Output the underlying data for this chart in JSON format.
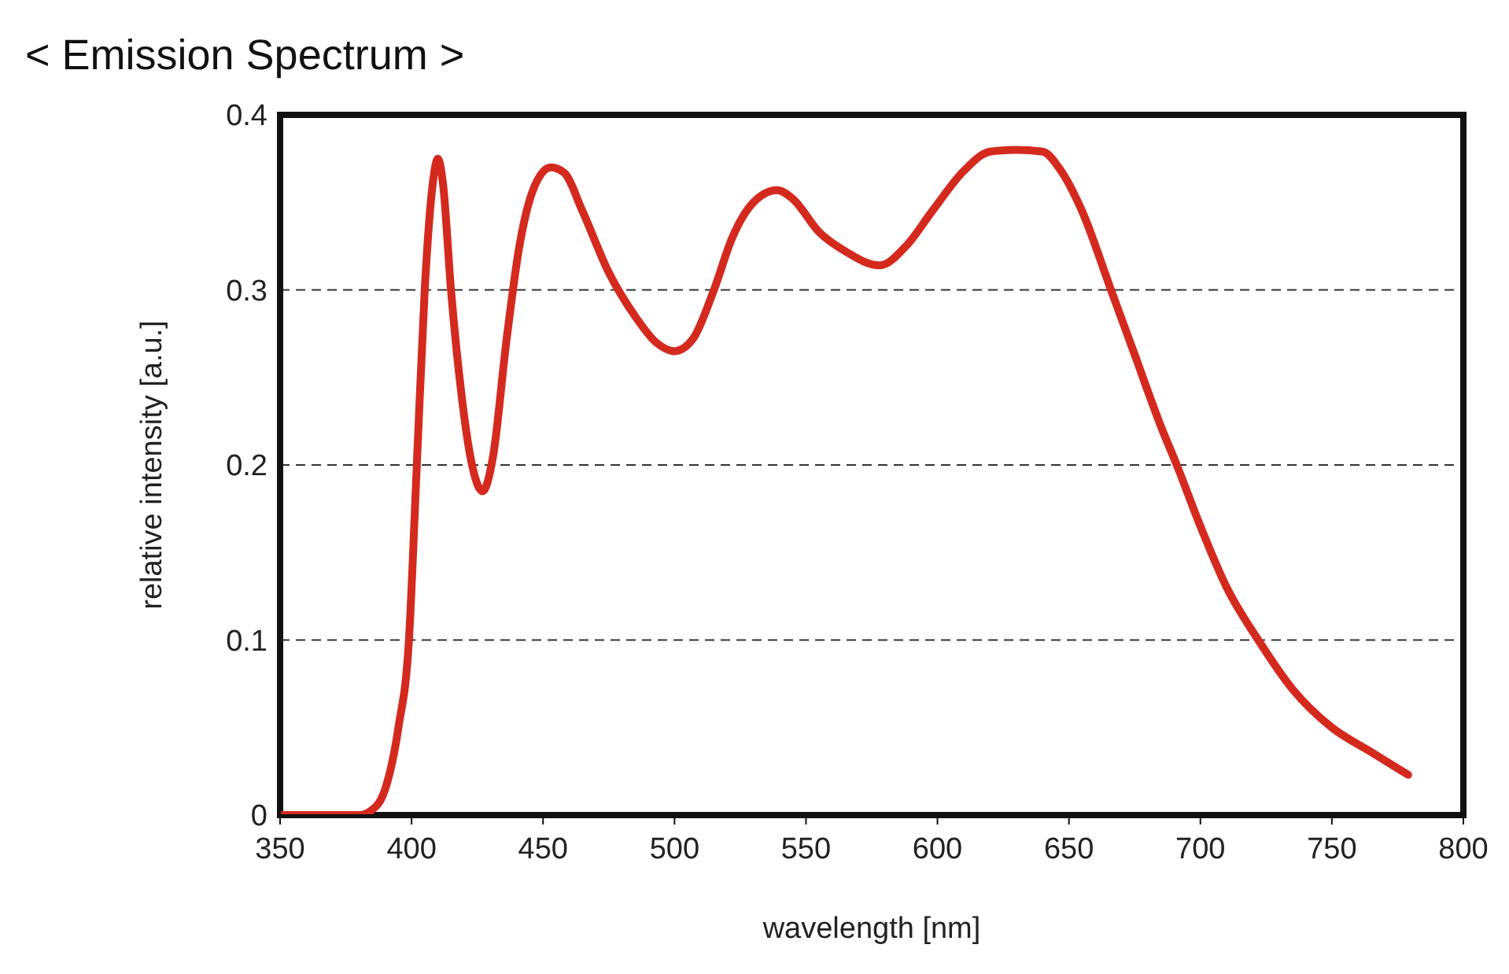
{
  "chart_data": {
    "type": "line",
    "title": "< Emission Spectrum >",
    "xlabel": "wavelength [nm]",
    "ylabel": "relative intensity [a.u.]",
    "xlim": [
      350,
      800
    ],
    "xticks": [
      350,
      400,
      450,
      500,
      550,
      600,
      650,
      700,
      750,
      800
    ],
    "ylim": [
      0,
      0.4
    ],
    "yticks": [
      0,
      0.1,
      0.2,
      0.3,
      0.4
    ],
    "grid": "y",
    "marker": "none",
    "line_style": "solid",
    "series": [
      {
        "color": "#d42a1e",
        "x": [
          350,
          370,
          380,
          385,
          390,
          395,
          399,
          402,
          405,
          408,
          410,
          412,
          415,
          419,
          423,
          427,
          431,
          436,
          441,
          447,
          453,
          458,
          465,
          475,
          485,
          493,
          500,
          507,
          515,
          522,
          530,
          539,
          545,
          555,
          565,
          578,
          588,
          598,
          610,
          620,
          630,
          640,
          647,
          655,
          666,
          675,
          685,
          691,
          700,
          710,
          722,
          735,
          750,
          765,
          779
        ],
        "values": [
          0,
          0,
          0,
          0.003,
          0.015,
          0.05,
          0.1,
          0.2,
          0.3,
          0.36,
          0.375,
          0.36,
          0.3,
          0.24,
          0.2,
          0.185,
          0.205,
          0.27,
          0.325,
          0.36,
          0.37,
          0.367,
          0.345,
          0.31,
          0.285,
          0.27,
          0.265,
          0.272,
          0.3,
          0.33,
          0.35,
          0.357,
          0.352,
          0.333,
          0.322,
          0.314,
          0.325,
          0.345,
          0.368,
          0.379,
          0.38,
          0.379,
          0.368,
          0.345,
          0.3,
          0.263,
          0.222,
          0.2,
          0.165,
          0.13,
          0.1,
          0.072,
          0.05,
          0.036,
          0.023
        ]
      }
    ]
  }
}
